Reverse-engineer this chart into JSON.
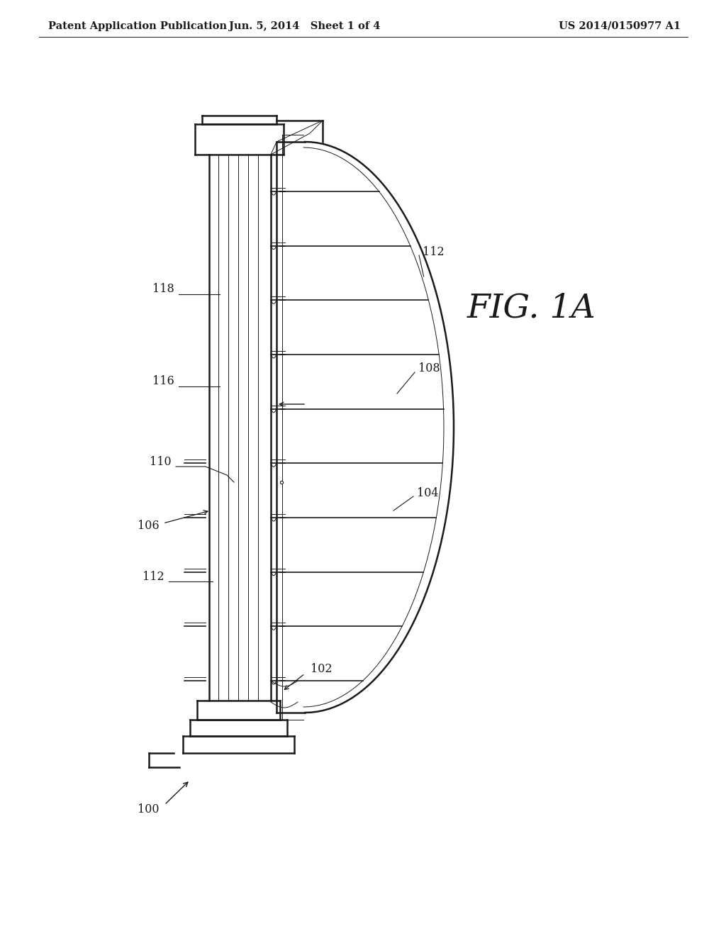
{
  "header_left": "Patent Application Publication",
  "header_center": "Jun. 5, 2014   Sheet 1 of 4",
  "header_right": "US 2014/0150977 A1",
  "fig_label": "FIG. 1A",
  "bg_color": "#ffffff",
  "line_color": "#1a1a1a",
  "header_fontsize": 10.5,
  "label_fontsize": 11.5
}
